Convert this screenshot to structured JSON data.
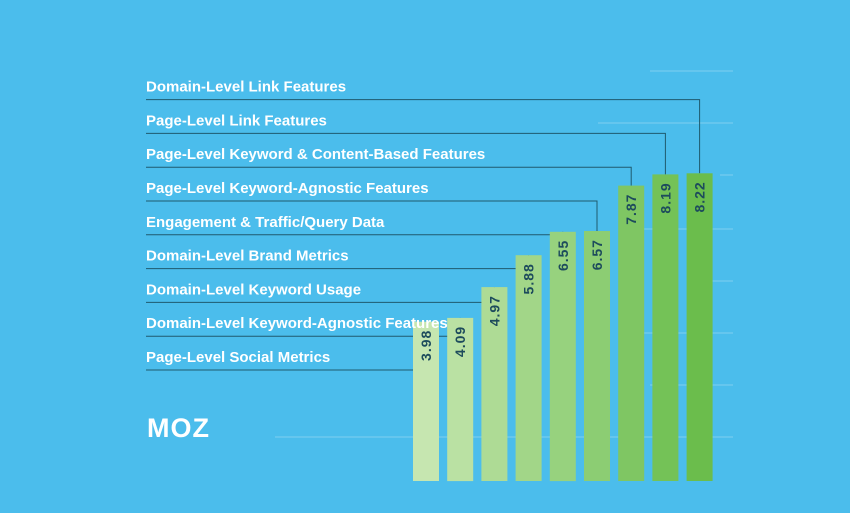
{
  "brand": {
    "logo_text": "MOZ"
  },
  "chart_data": {
    "type": "bar",
    "title": "",
    "xlabel": "",
    "ylabel": "",
    "ylim": [
      0,
      10
    ],
    "grid": true,
    "label_color": "#ffffff",
    "value_color": "#1d4b5c",
    "background": "#4bbdec",
    "categories": [
      "Page-Level Social Metrics",
      "Domain-Level Keyword-Agnostic Features",
      "Domain-Level Keyword Usage",
      "Domain-Level Brand Metrics",
      "Engagement & Traffic/Query Data",
      "Page-Level Keyword-Agnostic Features",
      "Page-Level Keyword & Content-Based Features",
      "Page-Level Link Features",
      "Domain-Level Link Features"
    ],
    "values": [
      3.98,
      4.09,
      4.97,
      5.88,
      6.55,
      6.57,
      7.87,
      8.19,
      8.22
    ],
    "value_labels": [
      "3.98",
      "4.09",
      "4.97",
      "5.88",
      "6.55",
      "6.57",
      "7.87",
      "8.19",
      "8.22"
    ],
    "bar_colors": [
      "#c6e6b0",
      "#bae1a3",
      "#aedb95",
      "#a2d688",
      "#97d27e",
      "#8ccd73",
      "#7fc663",
      "#74c257",
      "#6bbd4c"
    ]
  }
}
